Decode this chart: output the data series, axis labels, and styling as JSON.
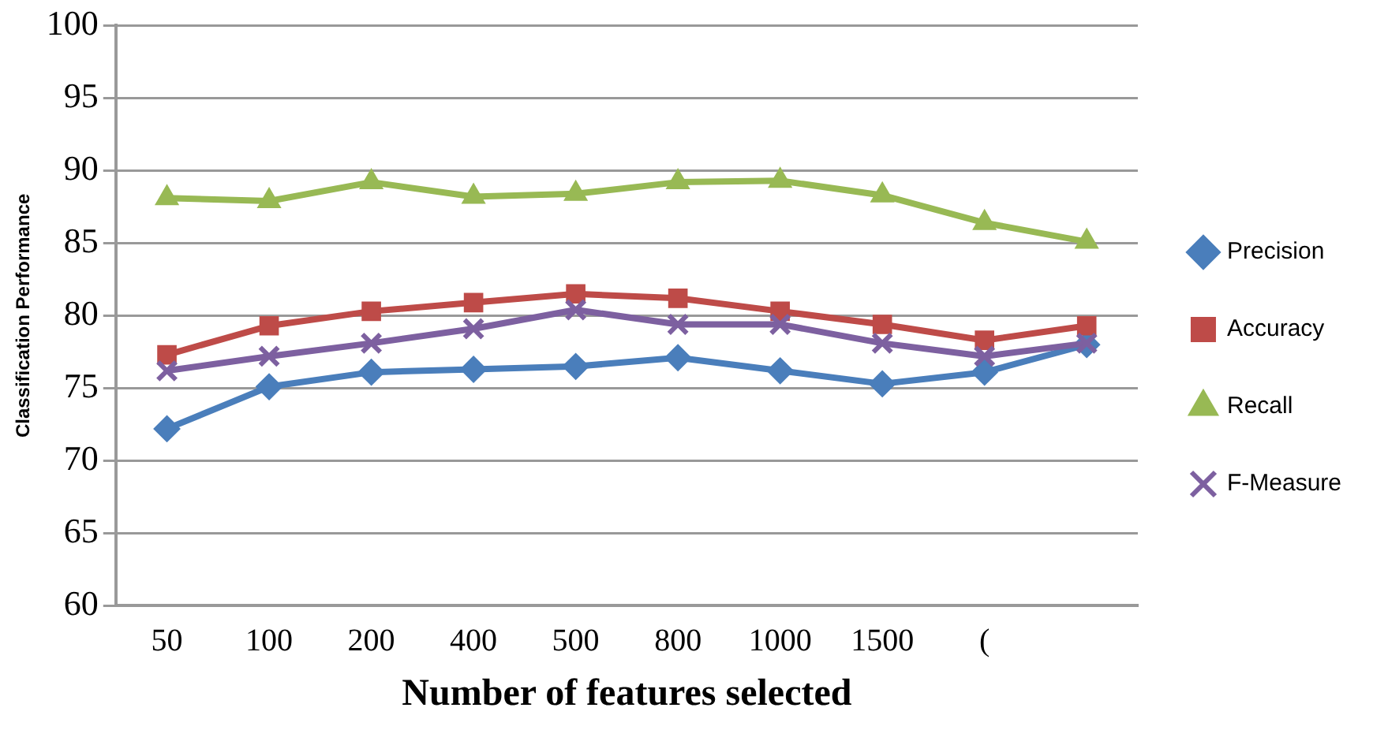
{
  "chart_data": {
    "type": "line",
    "xlabel": "Number of features selected",
    "ylabel": "Classification Performance",
    "categories": [
      "50",
      "100",
      "200",
      "400",
      "500",
      "800",
      "1000",
      "1500",
      "(",
      null
    ],
    "series": [
      {
        "name": "Precision",
        "color": "#4a7ebb",
        "marker": "diamond",
        "values": [
          72.2,
          75.1,
          76.1,
          76.3,
          76.5,
          77.1,
          76.2,
          75.3,
          76.1,
          78.0
        ]
      },
      {
        "name": "Accuracy",
        "color": "#be4b48",
        "marker": "square",
        "values": [
          77.3,
          79.3,
          80.3,
          80.9,
          81.5,
          81.2,
          80.3,
          79.4,
          78.3,
          79.3
        ]
      },
      {
        "name": "Recall",
        "color": "#98b954",
        "marker": "triangle",
        "values": [
          88.1,
          87.9,
          89.2,
          88.2,
          88.4,
          89.2,
          89.3,
          88.3,
          86.4,
          85.1
        ]
      },
      {
        "name": "F-Measure",
        "color": "#7d60a0",
        "marker": "cross",
        "values": [
          76.2,
          77.2,
          78.1,
          79.1,
          80.4,
          79.4,
          79.4,
          78.1,
          77.2,
          78.1
        ]
      }
    ],
    "ylim": [
      60,
      100
    ],
    "yticks": [
      60,
      65,
      70,
      75,
      80,
      85,
      90,
      95,
      100
    ],
    "grid": "y",
    "legend": "right"
  }
}
